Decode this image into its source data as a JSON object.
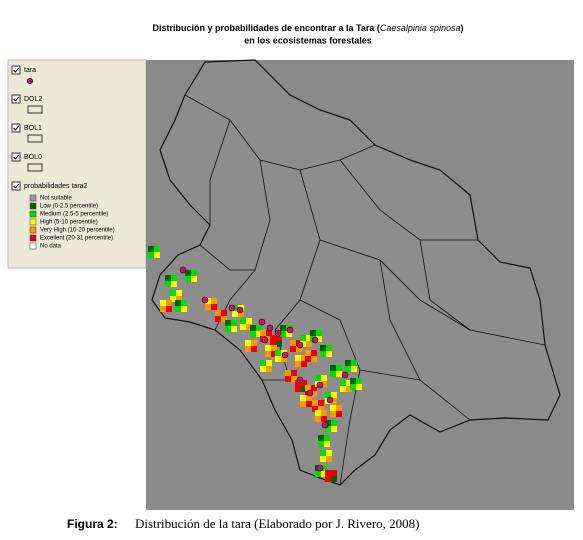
{
  "title": {
    "before": "Distribución y probabilidades de encontrar a la Tara (",
    "species": "Caesalpinia spinosa",
    "after": ")",
    "line2": "en los ecosistemas forestales"
  },
  "legend": {
    "layers": [
      "tara",
      "DOL2",
      "BOL1",
      "BOL0",
      "probabilidades tara2"
    ],
    "classes": [
      {
        "label": "Not suitable",
        "color": "#9a9a9a"
      },
      {
        "label": "Low (0-2.5 percentile)",
        "color": "#006400"
      },
      {
        "label": "Medium (2.5-5 percentile)",
        "color": "#00dd00"
      },
      {
        "label": "High (5-10 percentile)",
        "color": "#ffff00"
      },
      {
        "label": "Very High (10-20 percentile)",
        "color": "#ff9900"
      },
      {
        "label": "Excellent (20-31 percentile)",
        "color": "#ee0000"
      },
      {
        "label": "No data",
        "color": "#ffffff"
      }
    ]
  },
  "caption": {
    "label": "Figura 2:",
    "text": "Distribución de la tara (Elaborado por J. Rivero, 2008)"
  }
}
